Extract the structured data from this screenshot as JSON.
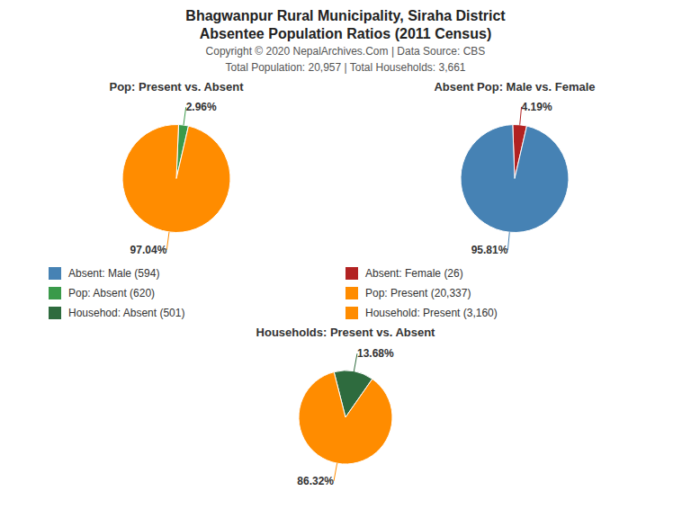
{
  "title": "Bhagwanpur Rural Municipality, Siraha District",
  "subtitle": "Absentee Population Ratios (2011 Census)",
  "annotations": [
    "Copyright © 2020 NepalArchives.Com | Data Source: CBS",
    "Total Population: 20,957 | Total Households: 3,661"
  ],
  "legend_items": [
    {
      "label": "Absent: Male (594)",
      "color": "#4682B4"
    },
    {
      "label": "Absent: Female (26)",
      "color": "#B22222"
    },
    {
      "label": "Pop: Absent (620)",
      "color": "#3A9A4A"
    },
    {
      "label": "Pop: Present (20,337)",
      "color": "#FF8C00"
    },
    {
      "label": "Househod: Absent (501)",
      "color": "#2E6B3E"
    },
    {
      "label": "Household: Present (3,160)",
      "color": "#FF8C00"
    }
  ],
  "chart_data": [
    {
      "type": "pie",
      "title": "Pop: Present vs. Absent",
      "values": [
        2.96,
        97.04
      ],
      "value_labels": [
        "2.96%",
        "97.04%"
      ],
      "colors": [
        "#3A9A4A",
        "#FF8C00"
      ],
      "data_labels": true
    },
    {
      "type": "pie",
      "title": "Absent Pop: Male vs. Female",
      "values": [
        4.19,
        95.81
      ],
      "value_labels": [
        "4.19%",
        "95.81%"
      ],
      "colors": [
        "#B22222",
        "#4682B4"
      ],
      "data_labels": true
    },
    {
      "type": "pie",
      "title": "Households: Present vs. Absent",
      "values": [
        13.68,
        86.32
      ],
      "value_labels": [
        "13.68%",
        "86.32%"
      ],
      "colors": [
        "#2E6B3E",
        "#FF8C00"
      ],
      "data_labels": true
    }
  ]
}
